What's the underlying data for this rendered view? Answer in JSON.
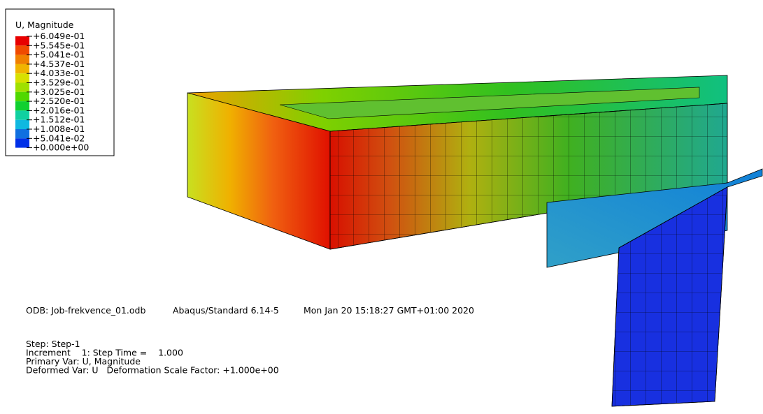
{
  "legend": {
    "title": "U, Magnitude",
    "labels": [
      "+6.049e-01",
      "+5.545e-01",
      "+5.041e-01",
      "+4.537e-01",
      "+4.033e-01",
      "+3.529e-01",
      "+3.025e-01",
      "+2.520e-01",
      "+2.016e-01",
      "+1.512e-01",
      "+1.008e-01",
      "+5.041e-02",
      "+0.000e+00"
    ]
  },
  "info": {
    "odb": "ODB: Job-frekvence_01.odb",
    "solver": "Abaqus/Standard 6.14-5",
    "date": "Mon Jan 20 15:18:27 GMT+01:00 2020",
    "lines": [
      "Step: Step-1",
      "Increment    1: Step Time =    1.000",
      "Primary Var: U, Magnitude",
      "Deformed Var: U   Deformation Scale Factor: +1.000e+00"
    ]
  }
}
